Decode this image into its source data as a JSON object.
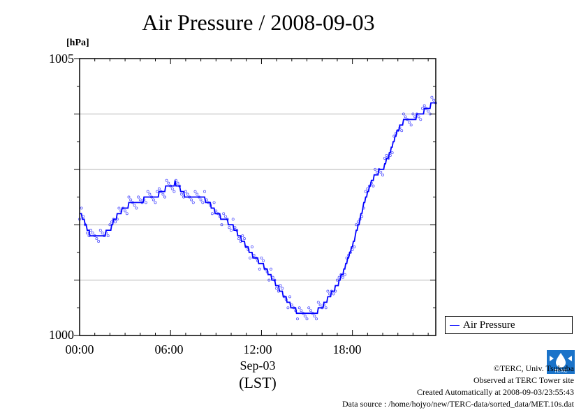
{
  "title": "Air Pressure / 2008-09-03",
  "unit": "[hPa]",
  "ymax_label": "1005",
  "ymin_label": "1000",
  "x_ticks": [
    "00:00",
    "06:00",
    "12:00",
    "18:00"
  ],
  "xlabel_date": "Sep-03",
  "xlabel_tz": "(LST)",
  "legend_label": "Air Pressure",
  "credits": {
    "copyright": "©TERC, Univ. Tsukuba",
    "observed": "Observed at TERC Tower site",
    "created": "Created Automatically at 2008-09-03/23:55:43",
    "source": "Data source : /home/hojyo/new/TERC-data/sorted_data/MET.10s.dat"
  },
  "logo_text": "TERC",
  "colors": {
    "series": "#0000ff",
    "grid": "#b4b4b4",
    "logo": "#1a73c9"
  },
  "chart_data": {
    "type": "line",
    "title": "Air Pressure / 2008-09-03",
    "xlabel": "Sep-03 (LST)",
    "ylabel": "[hPa]",
    "ylim": [
      1000,
      1005
    ],
    "xlim_hours": [
      0,
      23.5
    ],
    "x_tick_labels": [
      "00:00",
      "06:00",
      "12:00",
      "18:00"
    ],
    "y_tick_labels": [
      "1000",
      "1005"
    ],
    "grid": "horizontal",
    "legend": "right",
    "series": [
      {
        "name": "Air Pressure",
        "x_hours": [
          0.0,
          0.3,
          0.5,
          0.8,
          1.0,
          1.5,
          2.0,
          2.3,
          2.6,
          3.0,
          3.5,
          4.0,
          4.5,
          5.0,
          5.5,
          5.8,
          6.0,
          6.3,
          6.6,
          7.0,
          7.5,
          8.0,
          8.5,
          9.0,
          9.5,
          10.0,
          10.5,
          11.0,
          11.5,
          12.0,
          12.5,
          13.0,
          13.5,
          14.0,
          14.5,
          15.0,
          15.5,
          16.0,
          16.5,
          17.0,
          17.5,
          18.0,
          18.5,
          19.0,
          19.5,
          20.0,
          20.5,
          21.0,
          21.5,
          22.0,
          22.5,
          23.0,
          23.3,
          23.5
        ],
        "values": [
          1002.2,
          1002.1,
          1001.9,
          1001.8,
          1001.8,
          1001.8,
          1001.9,
          1002.1,
          1002.2,
          1002.3,
          1002.4,
          1002.4,
          1002.5,
          1002.5,
          1002.6,
          1002.7,
          1002.7,
          1002.75,
          1002.65,
          1002.5,
          1002.5,
          1002.5,
          1002.4,
          1002.2,
          1002.1,
          1002.0,
          1001.8,
          1001.6,
          1001.4,
          1001.3,
          1001.1,
          1000.9,
          1000.7,
          1000.5,
          1000.4,
          1000.4,
          1000.4,
          1000.5,
          1000.7,
          1000.9,
          1001.2,
          1001.6,
          1002.1,
          1002.6,
          1002.9,
          1003.0,
          1003.3,
          1003.7,
          1003.9,
          1003.9,
          1004.0,
          1004.1,
          1004.2,
          1004.2
        ]
      }
    ]
  }
}
